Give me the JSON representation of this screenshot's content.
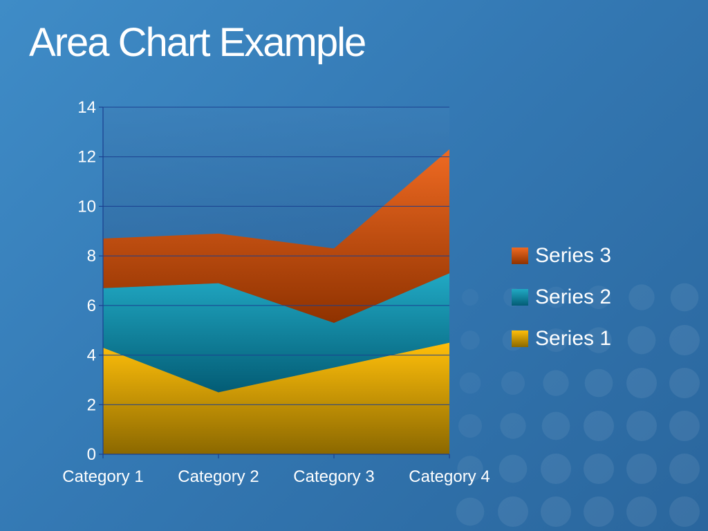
{
  "slide": {
    "title": "Area Chart Example"
  },
  "colors": {
    "background": "#3479b4",
    "gridline": "#1a3f8f",
    "series_1": "#f3b307",
    "series_2": "#1399b2",
    "series_3": "#db5a13",
    "text": "#ffffff"
  },
  "chart_data": {
    "type": "area",
    "stacked": true,
    "title": "",
    "xlabel": "",
    "ylabel": "",
    "categories": [
      "Category 1",
      "Category 2",
      "Category 3",
      "Category 4"
    ],
    "series": [
      {
        "name": "Series 1",
        "values": [
          4.3,
          2.5,
          3.5,
          4.5
        ]
      },
      {
        "name": "Series 2",
        "values": [
          2.4,
          4.4,
          1.8,
          2.8
        ]
      },
      {
        "name": "Series 3",
        "values": [
          2.0,
          2.0,
          3.0,
          5.0
        ]
      }
    ],
    "ylim": [
      0,
      14
    ],
    "yticks": [
      0,
      2,
      4,
      6,
      8,
      10,
      12,
      14
    ],
    "grid": true,
    "legend_position": "right"
  }
}
